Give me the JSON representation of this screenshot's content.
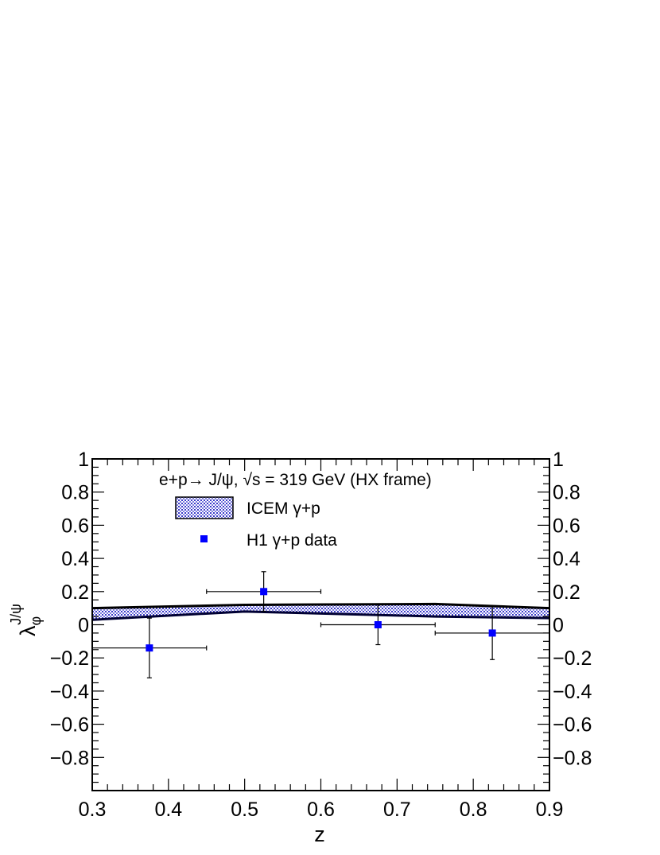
{
  "chart_data": {
    "type": "scatter",
    "xlabel": "z",
    "ylabel_main": "λ",
    "ylabel_sub": "φ",
    "ylabel_sup": "J/ψ",
    "xlim": [
      0.3,
      0.9
    ],
    "ylim": [
      -1.0,
      1.0
    ],
    "x_ticks": [
      "0.3",
      "0.4",
      "0.5",
      "0.6",
      "0.7",
      "0.8",
      "0.9"
    ],
    "y_ticks": [
      "1",
      "0.8",
      "0.6",
      "0.4",
      "0.2",
      "0",
      "−0.2",
      "−0.4",
      "−0.6",
      "−0.8"
    ],
    "right_y_ticks": [
      "1",
      "0.8",
      "0.6",
      "0.4",
      "0.2",
      "0",
      "−0.2",
      "−0.4",
      "−0.6",
      "−0.8"
    ],
    "grid": false,
    "legend_position": "top-center",
    "annotation": {
      "text_prefix": "e+p→ J/ψ, ",
      "sqrt_sign": "√",
      "text_sqrt_arg": "s",
      "text_suffix": " = 319 GeV (HX frame)"
    },
    "series": [
      {
        "name": "ICEM γ+p",
        "kind": "band",
        "color": "#3b3bc9",
        "x": [
          0.3,
          0.5,
          0.75,
          0.9
        ],
        "upper": [
          0.1,
          0.12,
          0.125,
          0.1
        ],
        "lower": [
          0.03,
          0.08,
          0.05,
          0.04
        ]
      },
      {
        "name": "H1 γ+p data",
        "kind": "points",
        "color": "#0000ff",
        "points": [
          {
            "x": 0.375,
            "y": -0.14,
            "xerr": 0.075,
            "yerr": 0.18
          },
          {
            "x": 0.525,
            "y": 0.2,
            "xerr": 0.075,
            "yerr": 0.12
          },
          {
            "x": 0.675,
            "y": 0.0,
            "xerr": 0.075,
            "yerr": 0.12
          },
          {
            "x": 0.825,
            "y": -0.05,
            "xerr": 0.075,
            "yerr": 0.16
          }
        ]
      }
    ]
  }
}
